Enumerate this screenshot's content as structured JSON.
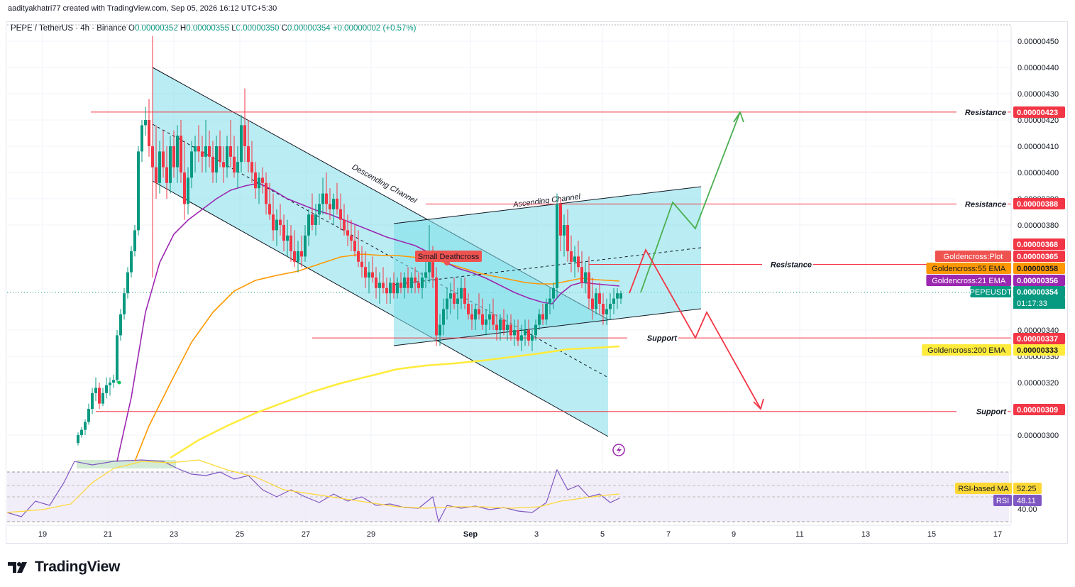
{
  "header": {
    "attribution": "aadityakhatri77 created with TradingView.com, Sep 05, 2026 16:12 UTC+5:30",
    "symbol": "PEPE / TetherUS · 4h · Binance",
    "o_label": "O",
    "o_value": "0.00000352",
    "h_label": "H",
    "h_value": "0.00000355",
    "l_label": "L",
    "l_value": "0.00000350",
    "c_label": "C",
    "c_value": "0.00000354",
    "change": "+0.00000002 (+0.57%)"
  },
  "brand": {
    "name": "TradingView",
    "logo_icon": "tradingview-logo-icon"
  },
  "colors": {
    "up": "#089981",
    "down": "#f23645",
    "ema21": "#9c27b0",
    "ema55": "#ff9800",
    "ema200": "#ffeb3b",
    "channel_fill": "#80deea",
    "level": "#f23645",
    "green_arrow": "#4caf50",
    "red_arrow": "#f23645",
    "rsi": "#7e57c2",
    "rsi_ma": "#fdd835"
  },
  "chart_data": {
    "type": "candlestick",
    "price_axis_ticks": [
      "0.00000450",
      "0.00000440",
      "0.00000430",
      "0.00000420",
      "0.00000410",
      "0.00000400",
      "0.00000390",
      "0.00000380",
      "0.00000340",
      "0.00000330",
      "0.00000320",
      "0.00000300"
    ],
    "time_axis_ticks": [
      "19",
      "21",
      "23",
      "25",
      "27",
      "29",
      "Sep",
      "3",
      "5",
      "7",
      "9",
      "11",
      "13",
      "15",
      "17"
    ],
    "levels": [
      {
        "label": "Resistance",
        "price": "0.00000423"
      },
      {
        "label": "Resistance",
        "price": "0.00000388"
      },
      {
        "label": "Resistance",
        "price": "0.00000365"
      },
      {
        "label": "Support",
        "price": "0.00000337"
      },
      {
        "label": "Support",
        "price": "0.00000309"
      }
    ],
    "price_labels": [
      {
        "name": "Resistance",
        "value": "0.00000423"
      },
      {
        "name": "Resistance",
        "value": "0.00000388"
      },
      {
        "name": "",
        "value": "0.00000368"
      },
      {
        "name": "Goldencross:Plot",
        "value": "0.00000365"
      },
      {
        "name": "Goldencross:55 EMA",
        "value": "0.00000358"
      },
      {
        "name": "Goldencross:21 EMA",
        "value": "0.00000356"
      },
      {
        "name": "PEPEUSDT",
        "value": "0.00000354",
        "extra": "01:17:33"
      },
      {
        "name": "Support",
        "value": "0.00000337"
      },
      {
        "name": "Goldencross:200 EMA",
        "value": "0.00000333"
      },
      {
        "name": "Support",
        "value": "0.00000309"
      }
    ],
    "annotations": [
      "Descending Channel",
      "Ascending Channel",
      "Small Deathcross"
    ],
    "rsi": {
      "name": "RSI",
      "value": "48.11",
      "ma_name": "RSI-based MA",
      "ma_value": "52.25",
      "tick": "40.00"
    }
  }
}
